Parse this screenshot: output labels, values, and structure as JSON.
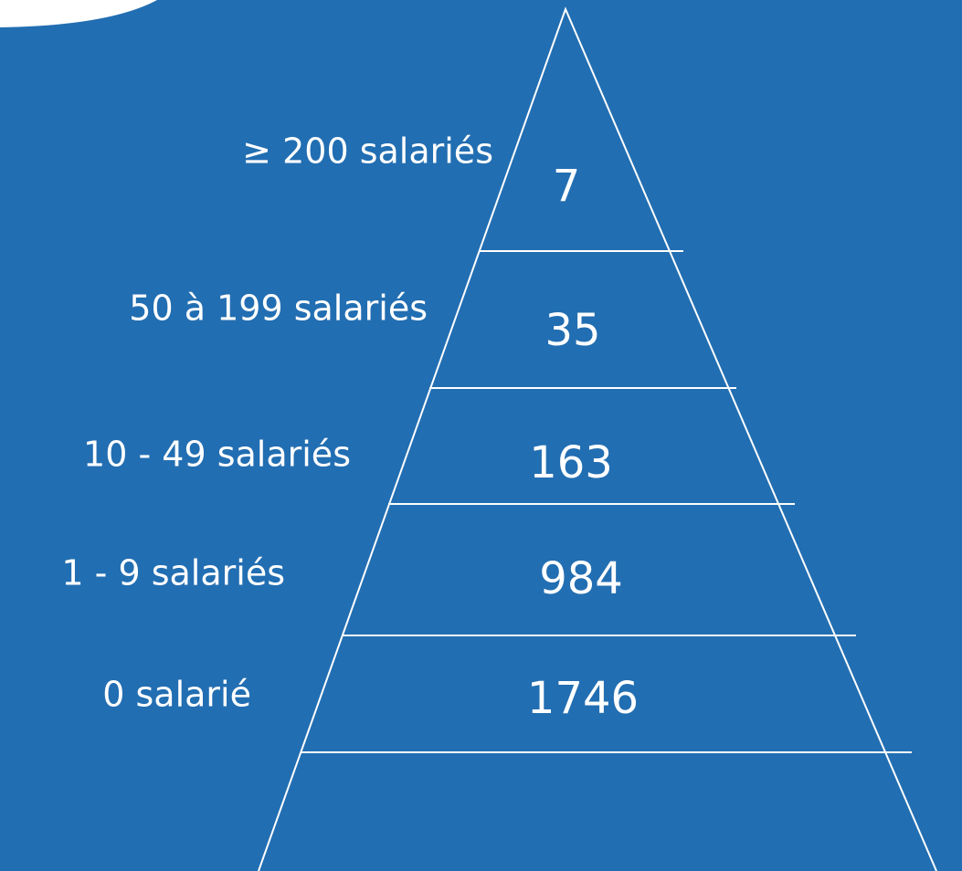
{
  "levels": [
    {
      "label": "≥ 200 salariés",
      "value": "7"
    },
    {
      "label": "50 à 199 salariés",
      "value": "35"
    },
    {
      "label": "10 - 49 salariés",
      "value": "163"
    },
    {
      "label": "1 - 9 salariés",
      "value": "984"
    },
    {
      "label": "0 salarié",
      "value": "1746"
    }
  ]
}
